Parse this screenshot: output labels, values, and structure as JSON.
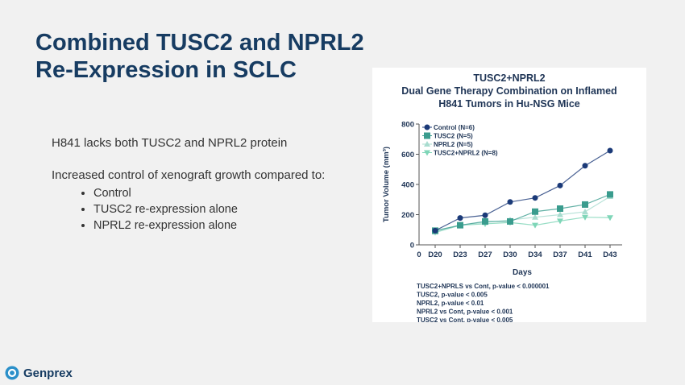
{
  "slide": {
    "title_line1": "Combined TUSC2 and NPRL2",
    "title_line2": "Re-Expression in SCLC",
    "para1": "H841 lacks both TUSC2 and NPRL2 protein",
    "para2": "Increased control of xenograft growth compared to:",
    "bullets": [
      "Control",
      "TUSC2 re-expression alone",
      "NPRL2 re-expression alone"
    ],
    "logo_text": "Genprex",
    "accent": "#173c62"
  },
  "chart_data": {
    "type": "line",
    "title": [
      "TUSC2+NPRL2",
      "Dual Gene Therapy Combination on Inflamed",
      "H841 Tumors in Hu-NSG Mice"
    ],
    "xlabel": "Days",
    "ylabel": "Tumor Volume (mm³)",
    "x_origin_label": "0",
    "categories": [
      "D20",
      "D23",
      "D27",
      "D30",
      "D34",
      "D37",
      "D41",
      "D43"
    ],
    "ylim": [
      0,
      800
    ],
    "yticks": [
      0,
      200,
      400,
      600,
      800
    ],
    "legend": "top-left",
    "series": [
      {
        "name": "Control (N=6)",
        "color": "#1b3a78",
        "marker": "circle",
        "values": [
          94,
          178,
          196,
          284,
          311,
          393,
          524,
          624
        ]
      },
      {
        "name": "TUSC2 (N=5)",
        "color": "#3a9c8e",
        "marker": "square",
        "values": [
          94,
          130,
          155,
          155,
          220,
          240,
          267,
          334
        ]
      },
      {
        "name": "NPRL2 (N=5)",
        "color": "#a8dccf",
        "marker": "triangle-up",
        "values": [
          85,
          130,
          148,
          165,
          183,
          200,
          219,
          320
        ]
      },
      {
        "name": "TUSC2+NPRL2 (N=8)",
        "color": "#7fd6b8",
        "marker": "triangle-down",
        "values": [
          82,
          130,
          139,
          148,
          130,
          158,
          183,
          180
        ]
      }
    ],
    "annotations": [
      "TUSC2+NPRLS vs Cont, p-value < 0.000001",
      "TUSC2, p-value < 0.005",
      "NPRL2, p-value < 0.01",
      "NPRL2 vs Cont, p-value < 0.001",
      "TUSC2 vs Cont, p-value < 0.005"
    ]
  }
}
